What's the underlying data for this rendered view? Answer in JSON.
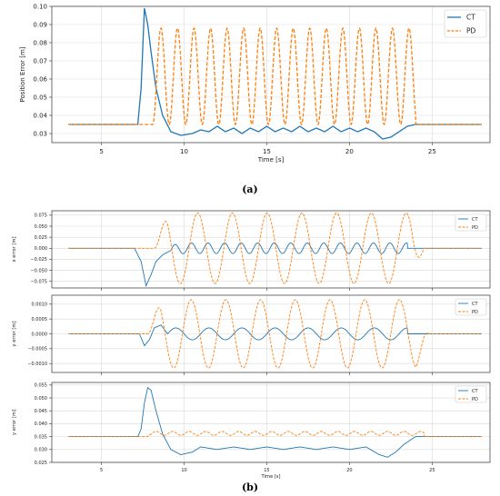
{
  "captions": {
    "a": "(a)",
    "b": "(b)"
  },
  "colors": {
    "CT": "#1f77b4",
    "PD": "#ff7f0e",
    "grid": "#d9d9d9"
  },
  "chart_data": [
    {
      "id": "a",
      "type": "line",
      "xlabel": "Time [s]",
      "ylabel": "Position Error [m]",
      "xlim": [
        2,
        28.5
      ],
      "ylim": [
        0.025,
        0.1
      ],
      "xticks": [
        5,
        10,
        15,
        20,
        25
      ],
      "yticks": [
        0.03,
        0.04,
        0.05,
        0.06,
        0.07,
        0.08,
        0.09,
        0.1
      ],
      "ytick_labels": [
        "0.03",
        "0.04",
        "0.05",
        "0.06",
        "0.07",
        "0.08",
        "0.09",
        "0.10"
      ],
      "grid": true,
      "legend": "top-right",
      "series": [
        {
          "name": "CT",
          "style": "solid",
          "x": [
            3,
            7.2,
            7.4,
            7.6,
            7.8,
            8.0,
            8.3,
            8.7,
            9.2,
            9.8,
            10.5,
            11.0,
            11.5,
            12.0,
            12.5,
            13.0,
            13.5,
            14.0,
            14.5,
            15.0,
            15.5,
            16.0,
            16.5,
            17.0,
            17.5,
            18.0,
            18.5,
            19.0,
            19.5,
            20.0,
            20.5,
            21.0,
            21.5,
            22.0,
            22.5,
            23.0,
            23.5,
            24.0,
            25.0,
            28
          ],
          "y": [
            0.035,
            0.035,
            0.055,
            0.099,
            0.09,
            0.075,
            0.055,
            0.04,
            0.031,
            0.029,
            0.03,
            0.032,
            0.031,
            0.034,
            0.031,
            0.033,
            0.03,
            0.033,
            0.031,
            0.034,
            0.031,
            0.033,
            0.031,
            0.034,
            0.031,
            0.033,
            0.031,
            0.034,
            0.031,
            0.033,
            0.031,
            0.033,
            0.031,
            0.027,
            0.028,
            0.031,
            0.034,
            0.035,
            0.035,
            0.035
          ]
        },
        {
          "name": "PD",
          "style": "dashed",
          "mode": "oscillation",
          "baseline": 0.035,
          "t_start": 8.1,
          "t_end": 24.0,
          "period": 1.0,
          "low": 0.035,
          "high": 0.088,
          "x_range": [
            3,
            28
          ]
        }
      ]
    },
    {
      "id": "b1",
      "type": "line",
      "xlabel": "",
      "ylabel": "x error [m]",
      "xlim": [
        2,
        28.5
      ],
      "ylim": [
        -0.09,
        0.085
      ],
      "xticks": [
        5,
        10,
        15,
        20,
        25
      ],
      "yticks": [
        -0.075,
        -0.05,
        -0.025,
        0.0,
        0.025,
        0.05,
        0.075
      ],
      "ytick_labels": [
        "−0.075",
        "−0.050",
        "−0.025",
        "0.000",
        "0.025",
        "0.050",
        "0.075"
      ],
      "show_xtick_labels": false,
      "grid": true,
      "legend": "top-right",
      "series": [
        {
          "name": "CT",
          "style": "solid",
          "x": [
            3,
            7.0,
            7.4,
            7.7,
            8.0,
            8.3,
            8.7,
            9.2,
            10.0,
            28
          ],
          "y": [
            0,
            0,
            -0.03,
            -0.085,
            -0.06,
            -0.03,
            -0.015,
            -0.005,
            0.0,
            0.0
          ],
          "ripple": {
            "from": 9.2,
            "to": 23.5,
            "amplitude": 0.012,
            "period": 1.0
          }
        },
        {
          "name": "PD",
          "style": "dashed",
          "mode": "sine",
          "t_start": 8.2,
          "t_end": 24.5,
          "period": 2.1,
          "amplitude": 0.08,
          "phase_sign": 1,
          "x_range": [
            3,
            28
          ]
        }
      ]
    },
    {
      "id": "b2",
      "type": "line",
      "xlabel": "",
      "ylabel": "y error [m]",
      "xlim": [
        2,
        28.5
      ],
      "ylim": [
        -0.0013,
        0.0013
      ],
      "xticks": [
        5,
        10,
        15,
        20,
        25
      ],
      "yticks": [
        -0.001,
        -0.0005,
        0.0,
        0.0005,
        0.001
      ],
      "ytick_labels": [
        "−0.0010",
        "−0.0005",
        "0.0000",
        "0.0005",
        "0.0010"
      ],
      "show_xtick_labels": false,
      "grid": true,
      "legend": "top-right",
      "series": [
        {
          "name": "CT",
          "style": "solid",
          "x": [
            3,
            7.3,
            7.6,
            7.9,
            8.2,
            8.6,
            9.0,
            28
          ],
          "y": [
            0,
            0,
            -0.0004,
            -0.0002,
            0.0002,
            0.0003,
            0.0,
            0.0
          ],
          "ripple": {
            "from": 9.0,
            "to": 23.5,
            "amplitude": 0.0002,
            "period": 2.0
          }
        },
        {
          "name": "PD",
          "style": "dashed",
          "mode": "sine",
          "t_start": 7.8,
          "t_end": 24.8,
          "period": 2.1,
          "amplitude": 0.00115,
          "phase_sign": 1,
          "x_range": [
            3,
            28
          ]
        }
      ]
    },
    {
      "id": "b3",
      "type": "line",
      "xlabel": "Time [s]",
      "ylabel": "y error [m]",
      "xlim": [
        2,
        28.5
      ],
      "ylim": [
        0.025,
        0.056
      ],
      "xticks": [
        5,
        10,
        15,
        20,
        25
      ],
      "yticks": [
        0.025,
        0.03,
        0.035,
        0.04,
        0.045,
        0.05,
        0.055
      ],
      "ytick_labels": [
        "0.025",
        "0.030",
        "0.035",
        "0.040",
        "0.045",
        "0.050",
        "0.055"
      ],
      "show_xtick_labels": true,
      "grid": true,
      "legend": "top-right",
      "series": [
        {
          "name": "CT",
          "style": "solid",
          "x": [
            3,
            7.2,
            7.4,
            7.6,
            7.8,
            8.0,
            8.3,
            8.7,
            9.2,
            9.8,
            10.5,
            11.0,
            12.0,
            13.0,
            14.0,
            15.0,
            16.0,
            17.0,
            18.0,
            19.0,
            20.0,
            21.0,
            21.8,
            22.3,
            22.8,
            23.3,
            24.0,
            25.0,
            28
          ],
          "y": [
            0.035,
            0.035,
            0.038,
            0.048,
            0.054,
            0.053,
            0.045,
            0.036,
            0.03,
            0.028,
            0.029,
            0.031,
            0.03,
            0.031,
            0.03,
            0.031,
            0.03,
            0.031,
            0.03,
            0.031,
            0.03,
            0.031,
            0.028,
            0.027,
            0.029,
            0.032,
            0.035,
            0.035,
            0.035
          ]
        },
        {
          "name": "PD",
          "style": "dashed",
          "mode": "oscillation",
          "baseline": 0.035,
          "t_start": 7.8,
          "t_end": 24.5,
          "period": 1.0,
          "low": 0.0355,
          "high": 0.037,
          "x_range": [
            3,
            28
          ]
        }
      ]
    }
  ]
}
